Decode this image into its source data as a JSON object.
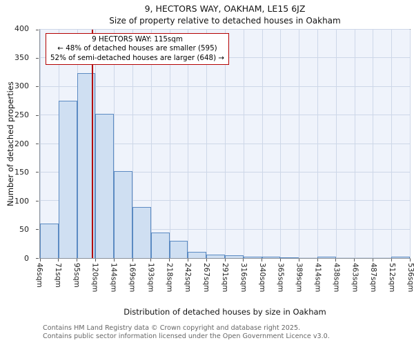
{
  "footer": {
    "line1": "Contains HM Land Registry data © Crown copyright and database right 2025.",
    "line2": "Contains public sector information licensed under the Open Government Licence v3.0."
  },
  "chart_data": {
    "type": "bar",
    "title": "9, HECTORS WAY, OAKHAM, LE15 6JZ",
    "subtitle": "Size of property relative to detached houses in Oakham",
    "xlabel": "Distribution of detached houses by size in Oakham",
    "ylabel": "Number of detached properties",
    "categories": [
      "46sqm",
      "71sqm",
      "95sqm",
      "120sqm",
      "144sqm",
      "169sqm",
      "193sqm",
      "218sqm",
      "242sqm",
      "267sqm",
      "291sqm",
      "316sqm",
      "340sqm",
      "365sqm",
      "389sqm",
      "414sqm",
      "438sqm",
      "463sqm",
      "487sqm",
      "512sqm",
      "536sqm"
    ],
    "values": [
      60,
      276,
      324,
      252,
      152,
      89,
      45,
      30,
      11,
      6,
      5,
      2,
      2,
      1,
      0,
      2,
      0,
      0,
      0,
      2
    ],
    "ylim": [
      0,
      400
    ],
    "y_ticks": [
      0,
      50,
      100,
      150,
      200,
      250,
      300,
      350,
      400
    ],
    "x_min": 46,
    "x_max": 536,
    "grid": true,
    "legend": "none",
    "marker": {
      "value": 115,
      "label": "9 HECTORS WAY: 115sqm",
      "color": "#b40000"
    },
    "annotation": [
      "9 HECTORS WAY: 115sqm",
      "← 48% of detached houses are smaller (595)",
      "52% of semi-detached houses are larger (648) →"
    ],
    "colors": {
      "bar_fill": "#cfdff2",
      "bar_edge": "#5b8ac2",
      "plot_bg": "#eff3fb",
      "grid": "#cdd7e8",
      "marker": "#b40000"
    }
  }
}
